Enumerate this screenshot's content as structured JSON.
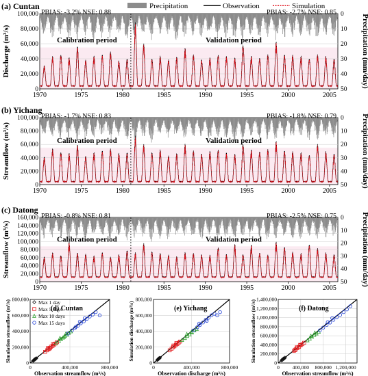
{
  "legend": {
    "precipitation": "Precipitation",
    "observation": "Observation",
    "simulation": "Simulation"
  },
  "colors": {
    "precipitation": "#8c8c8c",
    "observation": "#000000",
    "simulation": "#e0101a",
    "period_shade": "#f7d9e6",
    "max1": "#111111",
    "max5": "#e31a1c",
    "max10": "#2ca02c",
    "max15": "#1f3fd6"
  },
  "chart_data": [
    {
      "type": "line",
      "panel": "a",
      "title": "(a) Cuntan",
      "ylabel": "Discharge (m³/s)",
      "y2label": "Precipitation (mm/day)",
      "ylim": [
        0,
        100000
      ],
      "yticks": [
        "0",
        "20,000",
        "40,000",
        "60,000",
        "80,000",
        "100,000"
      ],
      "y2lim": [
        50,
        0
      ],
      "y2ticks": [
        "0",
        "10",
        "20",
        "30",
        "40",
        "50"
      ],
      "xlim": [
        1970,
        2006
      ],
      "xticks": [
        "1970",
        "1975",
        "1980",
        "1985",
        "1990",
        "1995",
        "2000",
        "2005"
      ],
      "split_year": 1981,
      "calibration_label": "Calibration period",
      "validation_label": "Validation period",
      "stats_cal": "PBIAS: -3.2%  NSE: 0.88",
      "stats_val": "PBIAS: -2.7%  NSE: 0.85",
      "base_flow": 4000,
      "annual_peaks": [
        30000,
        42000,
        45000,
        40000,
        55000,
        38000,
        42000,
        45000,
        48000,
        36000,
        40000,
        85000,
        58000,
        40000,
        42000,
        38000,
        42000,
        52000,
        45000,
        38000,
        40000,
        45000,
        42000,
        40000,
        58000,
        42000,
        40000,
        45000,
        60000,
        45000,
        44000,
        42000,
        40000,
        44000,
        42000,
        40000
      ],
      "precip_max": [
        16,
        18,
        15,
        17,
        19,
        15,
        18,
        16,
        17,
        15,
        18,
        16,
        17,
        18,
        15,
        16,
        19,
        17,
        15,
        16,
        18,
        17,
        16,
        19,
        18,
        15,
        17,
        16,
        18,
        17,
        16,
        15,
        17,
        18,
        16,
        15
      ]
    },
    {
      "type": "line",
      "panel": "b",
      "title": "(b) Yichang",
      "ylabel": "Streamflow (m³/s)",
      "y2label": "Precipitation (mm/day)",
      "ylim": [
        0,
        100000
      ],
      "yticks": [
        "0",
        "20,000",
        "40,000",
        "60,000",
        "80,000",
        "100,000"
      ],
      "y2lim": [
        50,
        0
      ],
      "y2ticks": [
        "0",
        "10",
        "20",
        "30",
        "40",
        "50"
      ],
      "xlim": [
        1970,
        2006
      ],
      "xticks": [
        "1970",
        "1975",
        "1980",
        "1985",
        "1990",
        "1995",
        "2000",
        "2005"
      ],
      "split_year": 1981,
      "calibration_label": "Calibration period",
      "validation_label": "Validation period",
      "stats_cal": "PBIAS: -1.7%  NSE: 0.83",
      "stats_val": "PBIAS: -1.8%  NSE: 0.79",
      "base_flow": 4500,
      "annual_peaks": [
        40000,
        52000,
        48000,
        45000,
        58000,
        42000,
        46000,
        50000,
        52000,
        45000,
        48000,
        70000,
        58000,
        48000,
        50000,
        42000,
        46000,
        58000,
        50000,
        45000,
        48000,
        52000,
        46000,
        44000,
        60000,
        50000,
        48000,
        52000,
        62000,
        50000,
        48000,
        46000,
        44000,
        58000,
        48000,
        46000
      ],
      "precip_max": [
        15,
        17,
        16,
        18,
        19,
        16,
        17,
        15,
        18,
        16,
        17,
        18,
        16,
        19,
        15,
        17,
        18,
        16,
        17,
        15,
        18,
        16,
        17,
        19,
        18,
        16,
        15,
        17,
        18,
        16,
        17,
        15,
        18,
        17,
        16,
        15
      ]
    },
    {
      "type": "line",
      "panel": "c",
      "title": "(c) Datong",
      "ylabel": "Streamflow (m³/s)",
      "y2label": "Precipitation (mm/day)",
      "ylim": [
        0,
        160000
      ],
      "yticks": [
        "0",
        "20,000",
        "40,000",
        "60,000",
        "80,000",
        "100,000",
        "120,000",
        "140,000",
        "160,000"
      ],
      "y2lim": [
        50,
        0
      ],
      "y2ticks": [
        "0",
        "10",
        "20",
        "30",
        "40",
        "50"
      ],
      "xlim": [
        1970,
        2006
      ],
      "xticks": [
        "1970",
        "1975",
        "1980",
        "1985",
        "1990",
        "1995",
        "2000",
        "2005"
      ],
      "split_year": 1981,
      "calibration_label": "Calibration period",
      "validation_label": "Validation period",
      "stats_cal": "PBIAS: -0.8%  NSE: 0.81",
      "stats_val": "PBIAS: -2.5%  NSE: 0.75",
      "base_flow": 12000,
      "annual_peaks": [
        60000,
        70000,
        65000,
        95000,
        70000,
        68000,
        62000,
        72000,
        60000,
        65000,
        78000,
        70000,
        92000,
        75000,
        68000,
        65000,
        62000,
        70000,
        70000,
        66000,
        64000,
        85000,
        66000,
        90000,
        68000,
        88000,
        70000,
        66000,
        95000,
        85000,
        72000,
        68000,
        92000,
        80000,
        70000,
        68000
      ],
      "precip_max": [
        17,
        18,
        16,
        19,
        17,
        18,
        16,
        17,
        19,
        15,
        18,
        17,
        16,
        19,
        17,
        18,
        16,
        15,
        17,
        18,
        16,
        19,
        17,
        18,
        16,
        17,
        15,
        18,
        17,
        16,
        19,
        17,
        16,
        18,
        17,
        15
      ]
    },
    {
      "type": "scatter",
      "panel": "d",
      "title": "(d) Cuntan",
      "xlabel": "Observation streamflow (m³/s)",
      "ylabel": "Simulation streamflow (m³/s)",
      "xlim": [
        0,
        800000
      ],
      "ylim": [
        0,
        800000
      ],
      "xticks": [
        "0",
        "400,000",
        "800,000"
      ],
      "yticks": [
        "0",
        "200,000",
        "400,000",
        "600,000",
        "800,000"
      ],
      "legend": [
        "Max 1 day",
        "Max 5 days",
        "Max 10 days",
        "Max 15 days"
      ],
      "series": [
        {
          "name": "Max 1 day",
          "marker": "diamond",
          "points": [
            [
              30000,
              28000
            ],
            [
              34000,
              31000
            ],
            [
              38000,
              36000
            ],
            [
              42000,
              40000
            ],
            [
              45000,
              43000
            ],
            [
              48000,
              44000
            ],
            [
              52000,
              50000
            ],
            [
              55000,
              52000
            ],
            [
              58000,
              56000
            ],
            [
              62000,
              60000
            ],
            [
              40000,
              41000
            ],
            [
              46000,
              47000
            ]
          ]
        },
        {
          "name": "Max 5 days",
          "marker": "square",
          "points": [
            [
              150000,
              140000
            ],
            [
              170000,
              160000
            ],
            [
              185000,
              175000
            ],
            [
              200000,
              190000
            ],
            [
              210000,
              205000
            ],
            [
              225000,
              215000
            ],
            [
              240000,
              232000
            ],
            [
              255000,
              245000
            ],
            [
              270000,
              262000
            ],
            [
              180000,
              190000
            ],
            [
              195000,
              182000
            ],
            [
              230000,
              238000
            ]
          ]
        },
        {
          "name": "Max 10 days",
          "marker": "triangle",
          "points": [
            [
              260000,
              250000
            ],
            [
              290000,
              280000
            ],
            [
              310000,
              300000
            ],
            [
              330000,
              320000
            ],
            [
              350000,
              340000
            ],
            [
              370000,
              355000
            ],
            [
              390000,
              380000
            ],
            [
              410000,
              398000
            ],
            [
              300000,
              315000
            ],
            [
              340000,
              330000
            ],
            [
              360000,
              372000
            ]
          ]
        },
        {
          "name": "Max 15 days",
          "marker": "circle",
          "points": [
            [
              380000,
              370000
            ],
            [
              420000,
              410000
            ],
            [
              450000,
              440000
            ],
            [
              480000,
              470000
            ],
            [
              510000,
              500000
            ],
            [
              540000,
              525000
            ],
            [
              570000,
              555000
            ],
            [
              600000,
              585000
            ],
            [
              630000,
              610000
            ],
            [
              660000,
              640000
            ],
            [
              700000,
              600000
            ],
            [
              500000,
              520000
            ],
            [
              550000,
              565000
            ],
            [
              460000,
              455000
            ]
          ]
        }
      ]
    },
    {
      "type": "scatter",
      "panel": "e",
      "title": "(e) Yichang",
      "xlabel": "Observation discharge (m³/s)",
      "ylabel": "Simulation discharge (m³/s)",
      "xlim": [
        0,
        800000
      ],
      "ylim": [
        0,
        800000
      ],
      "xticks": [
        "0",
        "400,000",
        "800,000"
      ],
      "yticks": [
        "0",
        "200,000",
        "400,000",
        "600,000",
        "800,000"
      ],
      "series": [
        {
          "name": "Max 1 day",
          "marker": "diamond",
          "points": [
            [
              40000,
              38000
            ],
            [
              44000,
              42000
            ],
            [
              48000,
              46000
            ],
            [
              52000,
              50000
            ],
            [
              56000,
              54000
            ],
            [
              60000,
              57000
            ],
            [
              64000,
              62000
            ],
            [
              68000,
              66000
            ],
            [
              50000,
              52000
            ],
            [
              58000,
              60000
            ]
          ]
        },
        {
          "name": "Max 5 days",
          "marker": "square",
          "points": [
            [
              170000,
              160000
            ],
            [
              190000,
              180000
            ],
            [
              205000,
              198000
            ],
            [
              220000,
              210000
            ],
            [
              235000,
              226000
            ],
            [
              250000,
              240000
            ],
            [
              265000,
              255000
            ],
            [
              280000,
              270000
            ],
            [
              210000,
              220000
            ],
            [
              240000,
              250000
            ]
          ]
        },
        {
          "name": "Max 10 days",
          "marker": "triangle",
          "points": [
            [
              300000,
              290000
            ],
            [
              330000,
              315000
            ],
            [
              355000,
              340000
            ],
            [
              380000,
              360000
            ],
            [
              405000,
              385000
            ],
            [
              430000,
              410000
            ],
            [
              455000,
              430000
            ],
            [
              350000,
              365000
            ],
            [
              400000,
              395000
            ]
          ]
        },
        {
          "name": "Max 15 days",
          "marker": "circle",
          "points": [
            [
              420000,
              410000
            ],
            [
              460000,
              450000
            ],
            [
              490000,
              480000
            ],
            [
              520000,
              510000
            ],
            [
              550000,
              545000
            ],
            [
              580000,
              570000
            ],
            [
              610000,
              600000
            ],
            [
              640000,
              620000
            ],
            [
              670000,
              600000
            ],
            [
              700000,
              640000
            ],
            [
              480000,
              495000
            ],
            [
              560000,
              530000
            ]
          ]
        }
      ]
    },
    {
      "type": "scatter",
      "panel": "f",
      "title": "(f) Datong",
      "xlabel": "Observation streamflow (m³/s)",
      "ylabel": "Simulation streamflow (m³/s)",
      "xlim": [
        0,
        1400000
      ],
      "ylim": [
        0,
        1400000
      ],
      "xticks": [
        "0",
        "400,000",
        "800,000",
        "1,200,000"
      ],
      "yticks": [
        "0",
        "200,000",
        "400,000",
        "600,000",
        "800,000",
        "1,000,000",
        "1,200,000",
        "1,400,000"
      ],
      "series": [
        {
          "name": "Max 1 day",
          "marker": "diamond",
          "points": [
            [
              60000,
              58000
            ],
            [
              70000,
              66000
            ],
            [
              80000,
              76000
            ],
            [
              90000,
              88000
            ],
            [
              100000,
              96000
            ],
            [
              110000,
              104000
            ],
            [
              120000,
              118000
            ],
            [
              75000,
              80000
            ],
            [
              95000,
              100000
            ]
          ]
        },
        {
          "name": "Max 5 days",
          "marker": "square",
          "points": [
            [
              280000,
              270000
            ],
            [
              310000,
              300000
            ],
            [
              340000,
              330000
            ],
            [
              370000,
              355000
            ],
            [
              400000,
              390000
            ],
            [
              430000,
              415000
            ],
            [
              460000,
              445000
            ],
            [
              330000,
              345000
            ],
            [
              390000,
              400000
            ],
            [
              300000,
              285000
            ]
          ]
        },
        {
          "name": "Max 10 days",
          "marker": "triangle",
          "points": [
            [
              520000,
              500000
            ],
            [
              560000,
              540000
            ],
            [
              600000,
              580000
            ],
            [
              640000,
              620000
            ],
            [
              680000,
              650000
            ],
            [
              720000,
              690000
            ],
            [
              580000,
              600000
            ],
            [
              650000,
              670000
            ]
          ]
        },
        {
          "name": "Max 15 days",
          "marker": "circle",
          "points": [
            [
              740000,
              720000
            ],
            [
              800000,
              780000
            ],
            [
              860000,
              840000
            ],
            [
              920000,
              890000
            ],
            [
              980000,
              950000
            ],
            [
              1040000,
              1010000
            ],
            [
              1100000,
              1060000
            ],
            [
              1160000,
              1120000
            ],
            [
              1220000,
              1180000
            ],
            [
              1280000,
              1250000
            ],
            [
              880000,
              900000
            ],
            [
              960000,
              990000
            ]
          ]
        }
      ]
    }
  ]
}
